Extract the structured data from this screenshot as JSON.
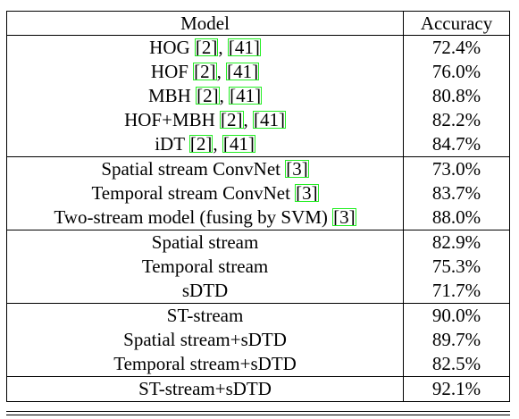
{
  "header": {
    "model": "Model",
    "accuracy": "Accuracy"
  },
  "groups": [
    [
      {
        "name": "HOG",
        "cites": [
          "2",
          "41"
        ],
        "acc": "72.4%",
        "bold": false
      },
      {
        "name": "HOF",
        "cites": [
          "2",
          "41"
        ],
        "acc": "76.0%",
        "bold": false
      },
      {
        "name": "MBH",
        "cites": [
          "2",
          "41"
        ],
        "acc": "80.8%",
        "bold": false
      },
      {
        "name": "HOF+MBH",
        "cites": [
          "2",
          "41"
        ],
        "acc": "82.2%",
        "bold": false
      },
      {
        "name": "iDT",
        "cites": [
          "2",
          "41"
        ],
        "acc": "84.7%",
        "bold": false
      }
    ],
    [
      {
        "name": "Spatial stream ConvNet",
        "cites": [
          "3"
        ],
        "acc": "73.0%",
        "bold": false
      },
      {
        "name": "Temporal stream ConvNet",
        "cites": [
          "3"
        ],
        "acc": "83.7%",
        "bold": false
      },
      {
        "name": "Two-stream model (fusing by SVM)",
        "cites": [
          "3"
        ],
        "acc": "88.0%",
        "bold": false
      }
    ],
    [
      {
        "name": "Spatial stream",
        "cites": [],
        "acc": "82.9%",
        "bold": false
      },
      {
        "name": "Temporal stream",
        "cites": [],
        "acc": "75.3%",
        "bold": false
      },
      {
        "name": "sDTD",
        "cites": [],
        "acc": "71.7%",
        "bold": true
      }
    ],
    [
      {
        "name": "ST-stream",
        "cites": [],
        "acc": "90.0%",
        "bold": false
      },
      {
        "name": "Spatial stream+sDTD",
        "cites": [],
        "acc": "89.7%",
        "bold": false
      },
      {
        "name": "Temporal stream+sDTD",
        "cites": [],
        "acc": "82.5%",
        "bold": false
      }
    ],
    [
      {
        "name": "ST-stream+sDTD",
        "cites": [],
        "acc": "92.1%",
        "bold": true
      }
    ]
  ]
}
